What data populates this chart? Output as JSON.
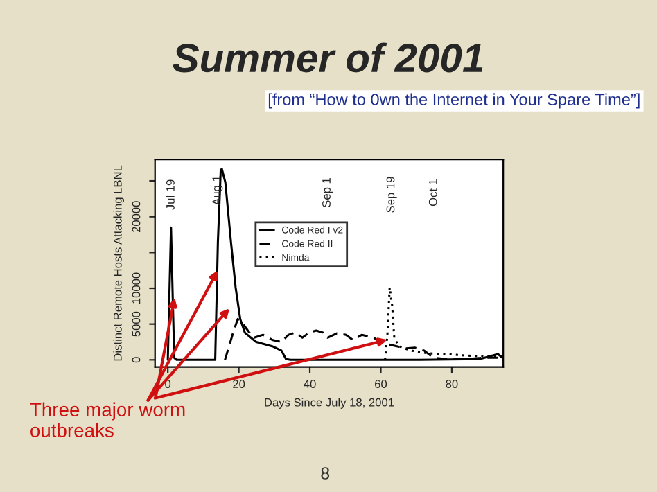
{
  "chart_data": {
    "type": "line",
    "title": "Summer of 2001",
    "subtitle": "[from “How to 0wn the Internet in Your Spare Time”]",
    "xlabel": "Days Since July 18, 2001",
    "ylabel": "Distinct Remote Hosts Attacking LBNL",
    "xlim": [
      -3.6,
      94.5
    ],
    "xticks": [
      0,
      20,
      40,
      60,
      80
    ],
    "ylim": [
      -1000,
      28000
    ],
    "yticks": [
      0,
      5000,
      10000,
      {
        "value": 15000,
        "label": null
      },
      20000,
      {
        "value": 25000,
        "label": null
      }
    ],
    "grid": false,
    "legend": "top",
    "marker": "none",
    "series": [
      {
        "name": "Code Red I v2",
        "color": "#000000",
        "line_style": "solid",
        "x": [
          0,
          0.9,
          1.8,
          2.5,
          13.35,
          14.1,
          14.9,
          15.2,
          16.2,
          17.8,
          19.1,
          20.4,
          21.7,
          24.9,
          29.4,
          32,
          33.3,
          34.6,
          60.6,
          70.9,
          87.8,
          93,
          94.3
        ],
        "values": [
          0,
          18500,
          300,
          0,
          0,
          16400,
          26400,
          26700,
          24800,
          16400,
          10100,
          5700,
          3800,
          2500,
          1900,
          1300,
          100,
          0,
          0,
          0,
          100,
          800,
          300
        ]
      },
      {
        "name": "Code Red II",
        "color": "#000000",
        "line_style": "dashed",
        "x": [
          16.1,
          18.4,
          19.7,
          20.6,
          23,
          24.3,
          26.8,
          29.4,
          32,
          34,
          35.9,
          37.9,
          39.8,
          41.8,
          43.7,
          45,
          47.6,
          50.2,
          52.1,
          54.7,
          58,
          59.9,
          61.8,
          64.5,
          67.1,
          69.6,
          72.2,
          74.8,
          78.7,
          83.9,
          89.1,
          93,
          94.3
        ],
        "values": [
          0,
          3800,
          5700,
          5400,
          3800,
          3100,
          3500,
          2800,
          2500,
          3500,
          3800,
          3100,
          3800,
          4100,
          3800,
          3100,
          3700,
          3500,
          2800,
          3500,
          3100,
          2500,
          2200,
          1900,
          1600,
          1700,
          1300,
          300,
          100,
          100,
          300,
          300,
          0
        ]
      },
      {
        "name": "Nimda",
        "color": "#000000",
        "line_style": "dotted",
        "x": [
          61.2,
          61.9,
          62.5,
          63.2,
          63.8,
          65.1,
          68.4,
          73.5,
          78.7,
          83.9,
          89.1,
          94.3
        ],
        "values": [
          0,
          3800,
          10100,
          7600,
          3100,
          1900,
          1300,
          900,
          800,
          600,
          500,
          500
        ]
      }
    ],
    "annotations": [
      "Jul 19",
      "Aug 1",
      "Sep 1",
      "Sep 19",
      "Oct 1",
      {
        "text": "Three major worm\noutbreaks",
        "x": 1.9,
        "y": 8700
      },
      "8"
    ]
  }
}
